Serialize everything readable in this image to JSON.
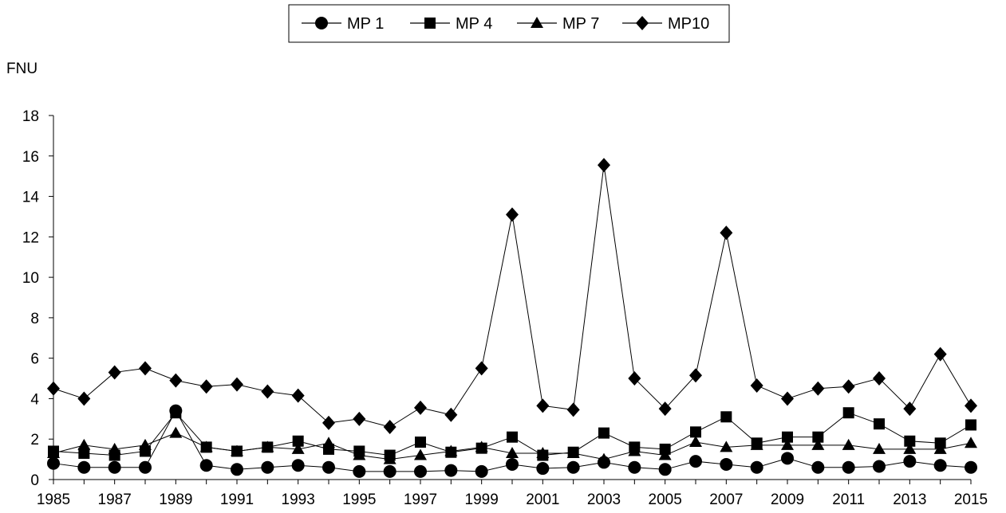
{
  "chart_data": {
    "type": "line",
    "title": "",
    "xlabel": "",
    "ylabel": "FNU",
    "ylim": [
      0,
      18
    ],
    "yticks": [
      0,
      2,
      4,
      6,
      8,
      10,
      12,
      14,
      16,
      18
    ],
    "xlim": [
      1985,
      2015
    ],
    "xtick_labels": [
      "1985",
      "1987",
      "1989",
      "1991",
      "1993",
      "1995",
      "1997",
      "1999",
      "2001",
      "2003",
      "2005",
      "2007",
      "2009",
      "2011",
      "2013",
      "2015"
    ],
    "grid": false,
    "legend_position": "top-center",
    "x": [
      1985,
      1986,
      1987,
      1988,
      1989,
      1990,
      1991,
      1992,
      1993,
      1994,
      1995,
      1996,
      1997,
      1998,
      1999,
      2000,
      2001,
      2002,
      2003,
      2004,
      2005,
      2006,
      2007,
      2008,
      2009,
      2010,
      2011,
      2012,
      2013,
      2014,
      2015
    ],
    "series": [
      {
        "name": "MP 1",
        "marker": "circle",
        "values": [
          0.8,
          0.6,
          0.6,
          0.6,
          3.4,
          0.7,
          0.5,
          0.6,
          0.7,
          0.6,
          0.4,
          0.4,
          0.4,
          0.45,
          0.4,
          0.75,
          0.55,
          0.6,
          0.85,
          0.6,
          0.5,
          0.9,
          0.75,
          0.6,
          1.05,
          0.6,
          0.6,
          0.65,
          0.9,
          0.7,
          0.6
        ]
      },
      {
        "name": "MP 4",
        "marker": "square",
        "values": [
          1.4,
          1.3,
          1.2,
          1.4,
          3.3,
          1.6,
          1.4,
          1.6,
          1.9,
          1.5,
          1.4,
          1.2,
          1.85,
          1.35,
          1.55,
          2.1,
          1.2,
          1.35,
          2.3,
          1.6,
          1.5,
          2.35,
          3.1,
          1.8,
          2.1,
          2.1,
          3.3,
          2.75,
          1.9,
          1.8,
          2.7
        ]
      },
      {
        "name": "MP 7",
        "marker": "triangle",
        "values": [
          1.3,
          1.7,
          1.5,
          1.7,
          2.3,
          1.6,
          1.4,
          1.6,
          1.5,
          1.8,
          1.2,
          1.0,
          1.2,
          1.4,
          1.6,
          1.3,
          1.3,
          1.3,
          1.0,
          1.4,
          1.2,
          1.85,
          1.6,
          1.7,
          1.7,
          1.7,
          1.7,
          1.5,
          1.5,
          1.5,
          1.8
        ]
      },
      {
        "name": "MP10",
        "marker": "diamond",
        "values": [
          4.5,
          4.0,
          5.3,
          5.5,
          4.9,
          4.6,
          4.7,
          4.35,
          4.15,
          2.8,
          3.0,
          2.6,
          3.55,
          3.2,
          5.5,
          13.1,
          3.65,
          3.45,
          15.55,
          5.0,
          3.5,
          5.15,
          12.2,
          4.65,
          4.0,
          4.5,
          4.6,
          5.0,
          3.5,
          6.2,
          3.65
        ]
      }
    ]
  }
}
